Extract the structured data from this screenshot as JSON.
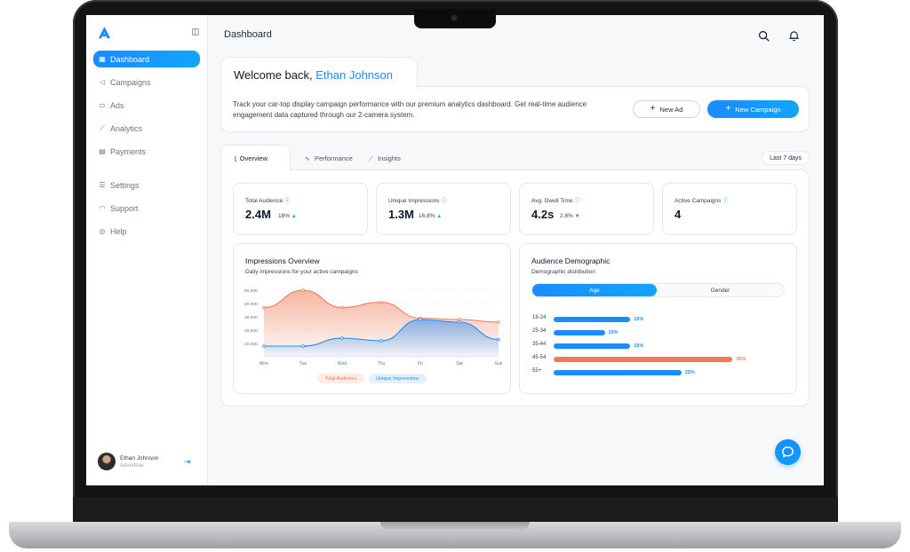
{
  "colors": {
    "accent": "#1a8cff",
    "audience": "#f07a56",
    "impressions": "#1a8cff",
    "up": "#10b981",
    "down": "#ef4444"
  },
  "sidebar": {
    "logo_icon": "triangle-logo-icon",
    "items": [
      {
        "label": "Dashboard",
        "icon": "grid-icon",
        "active": true
      },
      {
        "label": "Campaigns",
        "icon": "megaphone-icon"
      },
      {
        "label": "Ads",
        "icon": "ad-icon"
      },
      {
        "label": "Analytics",
        "icon": "analytics-icon"
      },
      {
        "label": "Payments",
        "icon": "card-icon"
      }
    ],
    "items_bottom": [
      {
        "label": "Settings",
        "icon": "settings-icon"
      },
      {
        "label": "Support",
        "icon": "headset-icon"
      },
      {
        "label": "Help",
        "icon": "help-icon"
      }
    ],
    "user": {
      "name": "Ethan Johnson",
      "role": "Advertiser"
    }
  },
  "header": {
    "title": "Dashboard"
  },
  "welcome": {
    "greeting": "Welcome back,",
    "name": "Ethan Johnson",
    "description": "Track your car-top display campaign performance with our premium analytics dashboard. Get real-time audience engagement data captured through our 2-camera system.",
    "new_ad_label": "New Ad",
    "new_campaign_label": "New Campaign"
  },
  "tabs": [
    {
      "label": "Overview",
      "icon": "line-chart-icon"
    },
    {
      "label": "Performance",
      "icon": "pulse-icon"
    },
    {
      "label": "Insights",
      "icon": "trend-icon"
    }
  ],
  "range": "Last 7 days",
  "stats": [
    {
      "label": "Total Audience",
      "value": "2.4M",
      "delta": "18%",
      "trend": "up"
    },
    {
      "label": "Unique Impressions",
      "value": "1.3M",
      "delta": "16.8%",
      "trend": "up"
    },
    {
      "label": "Avg. Dwell Time",
      "value": "4.2s",
      "delta": "2.8%",
      "trend": "down"
    },
    {
      "label": "Active Campaigns",
      "value": "4",
      "delta": "",
      "trend": ""
    }
  ],
  "impressions_panel": {
    "title": "Impressions Overview",
    "subtitle": "Daily impressions for your active campaigns"
  },
  "demographic_panel": {
    "title": "Audience Demographic",
    "subtitle": "Demographic distribution",
    "toggle": [
      "Age",
      "Gender"
    ]
  },
  "chart_data": [
    {
      "type": "area",
      "categories": [
        "Mon",
        "Tue",
        "Wed",
        "Thu",
        "Fri",
        "Sat",
        "Sun"
      ],
      "y_ticks": [
        "50,000",
        "40,000",
        "30,000",
        "20,000",
        "10,000"
      ],
      "ylim": [
        0,
        50000
      ],
      "series": [
        {
          "name": "Total Audience",
          "values": [
            37000,
            50000,
            37000,
            41000,
            29000,
            28000,
            26000
          ]
        },
        {
          "name": "Unique Impressions",
          "values": [
            8000,
            8000,
            14000,
            12000,
            28000,
            26000,
            13000
          ]
        }
      ],
      "grid": true,
      "legend": "bottom"
    },
    {
      "type": "bar",
      "orientation": "horizontal",
      "categories": [
        "18-24",
        "25-34",
        "35-44",
        "45-54",
        "55+"
      ],
      "values": [
        15,
        10,
        15,
        35,
        25
      ],
      "value_labels": [
        "15%",
        "10%",
        "15%",
        "35%",
        "25%"
      ],
      "xlim": [
        0,
        40
      ]
    }
  ]
}
